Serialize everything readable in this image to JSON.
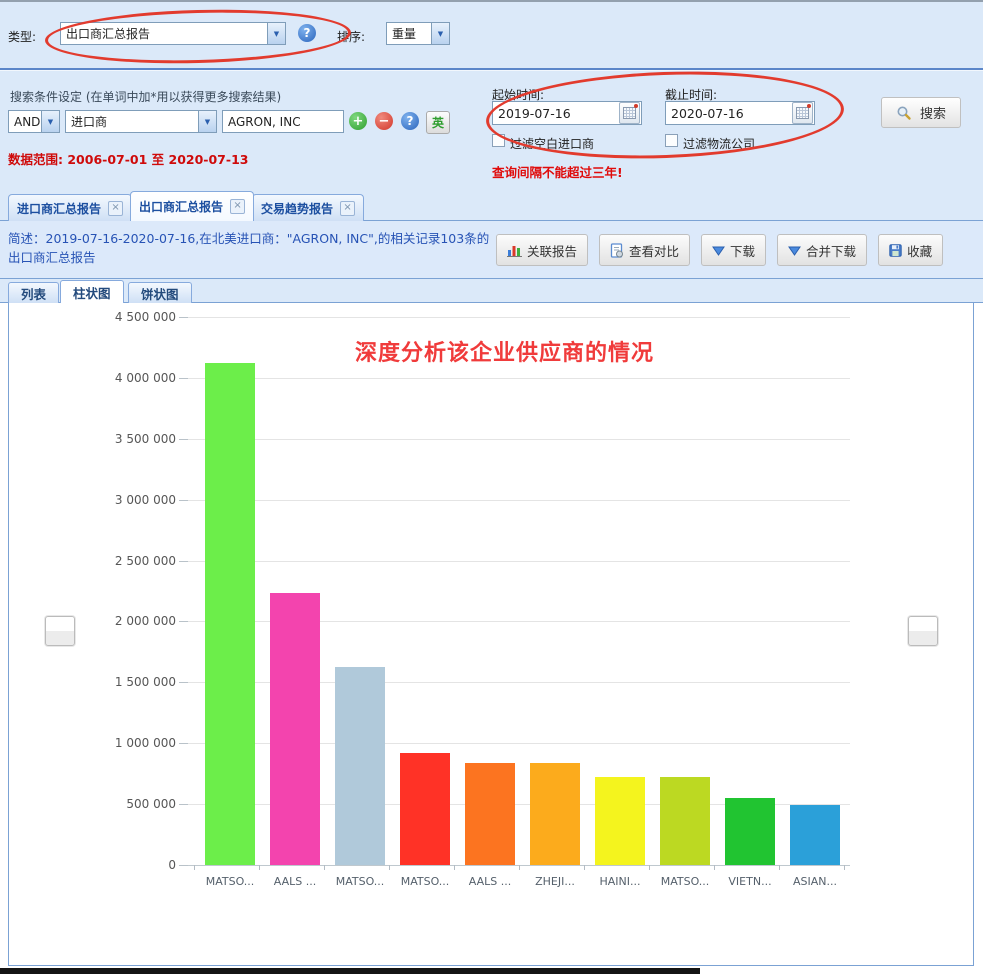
{
  "ui_colors": {
    "panel_bg": "#dbe9f9",
    "panel_border": "#7ba2d4",
    "tab_text": "#1c4fa0",
    "summary_text": "#2753b5",
    "warning_red": "#e00b0b",
    "annotation_red": "#e23b2e"
  },
  "icons": {
    "dropdown_arrow": "▼",
    "help_glyph": "?",
    "add_glyph": "+",
    "remove_glyph": "−",
    "close_glyph": "×",
    "en_label": "英"
  },
  "toolbar": {
    "type_label": "类型:",
    "type_value": "出口商汇总报告",
    "sort_label": "排序:",
    "sort_value": "重量"
  },
  "search": {
    "title": "搜索条件设定  (在单词中加*用以获得更多搜索结果)",
    "bool_op": "AND",
    "field_value": "进口商",
    "keyword": "AGRON, INC",
    "data_range": "数据范围: 2006-07-01 至 2020-07-13",
    "start_label": "起始时间:",
    "start_value": "2019-07-16",
    "end_label": "截止时间:",
    "end_value": "2020-07-16",
    "filter_blank_importer": "过滤空白进口商",
    "filter_logistics": "过滤物流公司",
    "warning": "查询间隔不能超过三年!",
    "search_button": "搜索"
  },
  "tabs": [
    {
      "label": "进口商汇总报告"
    },
    {
      "label": "出口商汇总报告"
    },
    {
      "label": "交易趋势报告"
    }
  ],
  "summary": {
    "text": "简述：2019-07-16-2020-07-16,在北美进口商：\"AGRON, INC\",的相关记录103条的出口商汇总报告"
  },
  "actions": {
    "related": "关联报告",
    "compare": "查看对比",
    "download": "下载",
    "merge_download": "合并下载",
    "favorite": "收藏"
  },
  "view_tabs": {
    "list": "列表",
    "bar": "柱状图",
    "pie": "饼状图"
  },
  "chart_data": {
    "type": "bar",
    "title": "深度分析该企业供应商的情况",
    "title_color": "#f03b3b",
    "categories": [
      "MATSO...",
      "AALS ...",
      "MATSO...",
      "MATSO...",
      "AALS ...",
      "ZHEJI...",
      "HAINI...",
      "MATSO...",
      "VIETN...",
      "ASIAN..."
    ],
    "values": [
      4120000,
      2230000,
      1630000,
      920000,
      835000,
      835000,
      725000,
      725000,
      550000,
      490000
    ],
    "bar_colors": [
      "#6cee4a",
      "#f344ae",
      "#b0c9da",
      "#ff3226",
      "#fc7420",
      "#fcab1c",
      "#f4f41e",
      "#bcd922",
      "#21c431",
      "#2ba0d9"
    ],
    "y_ticks": [
      "4 500 000",
      "4 000 000",
      "3 500 000",
      "3 000 000",
      "2 500 000",
      "2 000 000",
      "1 500 000",
      "1 000 000",
      "500 000",
      "0"
    ],
    "ylim": [
      0,
      4500000
    ],
    "xlabel": "",
    "ylabel": "",
    "grid": "horizontal",
    "legend": "none"
  }
}
